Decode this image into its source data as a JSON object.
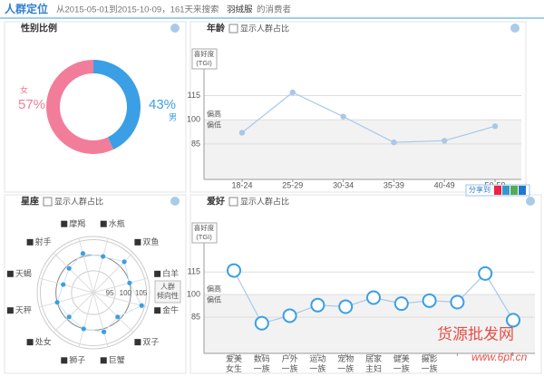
{
  "header": {
    "title": "人群定位",
    "subtitle": "从2015-05-01到2015-10-09，161天来搜索",
    "keyword": "羽绒服",
    "suffix": "的消费者"
  },
  "share": "分享到",
  "watermark": [
    "货源批发网",
    "www.6pf.cn"
  ],
  "chart_data": [
    {
      "type": "pie",
      "title": "性别比例",
      "categories": [
        "女",
        "男"
      ],
      "values": [
        57,
        43
      ],
      "value_labels": [
        "57%",
        "43%"
      ],
      "colors": [
        "#f27d9b",
        "#3a9fe4"
      ]
    },
    {
      "type": "line",
      "title": "年龄",
      "toggle": "显示人群占比",
      "y_label": [
        "喜好度",
        "(TGI)"
      ],
      "annotations": [
        "偏高",
        "偏低"
      ],
      "categories": [
        "18-24",
        "25-29",
        "30-34",
        "35-39",
        "40-49",
        "50-59"
      ],
      "values": [
        92,
        117,
        102,
        86,
        87,
        96
      ],
      "ylim": [
        63,
        135
      ],
      "yticks": [
        85,
        100,
        115
      ],
      "color": "#a9c8e8",
      "marker_color": "#a9c8e8"
    },
    {
      "type": "radar",
      "title": "星座",
      "toggle": "显示人群占比",
      "categories": [
        "摩羯",
        "水瓶",
        "双鱼",
        "白羊",
        "金牛",
        "双子",
        "巨蟹",
        "狮子",
        "处女",
        "天秤",
        "天蝎",
        "射手"
      ],
      "values": [
        101,
        100,
        102,
        100,
        104,
        99,
        101,
        100,
        99,
        100,
        98,
        99
      ],
      "rlim": [
        88,
        106
      ],
      "rticks": [
        95,
        100,
        105
      ],
      "r_label": [
        "人群",
        "倾向性"
      ],
      "color": "#3a9fe4"
    },
    {
      "type": "line",
      "title": "爱好",
      "toggle": "显示人群占比",
      "y_label": [
        "喜好度",
        "(TGI)"
      ],
      "annotations": [
        "偏高",
        "偏低"
      ],
      "categories": [
        "爱美女生",
        "数码一族",
        "户外一族",
        "运动一族",
        "宠物一族",
        "居家主妇",
        "健美一族",
        "摄影一族",
        null,
        null,
        null
      ],
      "values": [
        116,
        81,
        86,
        93,
        92,
        98,
        94,
        96,
        95,
        114,
        83
      ],
      "ylim": [
        61,
        138
      ],
      "yticks": [
        85,
        100,
        115
      ],
      "color": "#a9c8e8",
      "marker_color": "#3a9fe4"
    }
  ]
}
